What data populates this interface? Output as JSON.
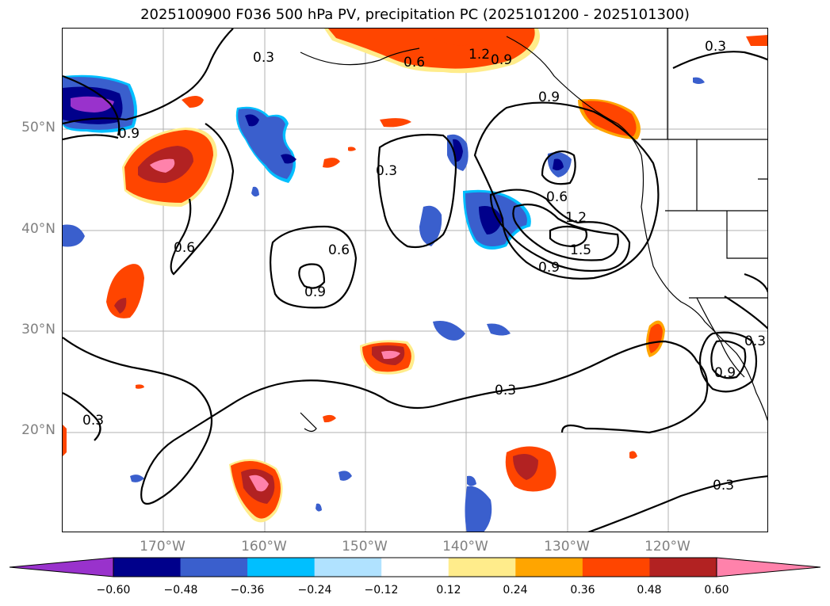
{
  "title": "2025100900 F036 500 hPa PV, precipitation PC (2025101200 - 2025101300)",
  "lat_labels": [
    "50°N",
    "40°N",
    "30°N",
    "20°N"
  ],
  "lon_labels": [
    "170°W",
    "160°W",
    "150°W",
    "140°W",
    "130°W",
    "120°W"
  ],
  "contour_labels": [
    "0.3",
    "0.6",
    "0.9",
    "1.2",
    "1.5"
  ],
  "colorbar": {
    "ticks": [
      "−0.60",
      "−0.48",
      "−0.36",
      "−0.24",
      "−0.12",
      "0.12",
      "0.24",
      "0.36",
      "0.48",
      "0.60"
    ],
    "colors": [
      "#9932cc",
      "#00008b",
      "#3a5fcd",
      "#00bfff",
      "#b0e2ff",
      "#ffffff",
      "#ffec8b",
      "#ffa500",
      "#ff4500",
      "#b22222",
      "#ff82ab"
    ]
  },
  "map_info": {
    "variable_contours": "500 hPa PV",
    "variable_shaded": "precipitation PC",
    "extent": {
      "lon_min": -180,
      "lon_max": -110,
      "lat_min": 10,
      "lat_max": 60
    }
  }
}
